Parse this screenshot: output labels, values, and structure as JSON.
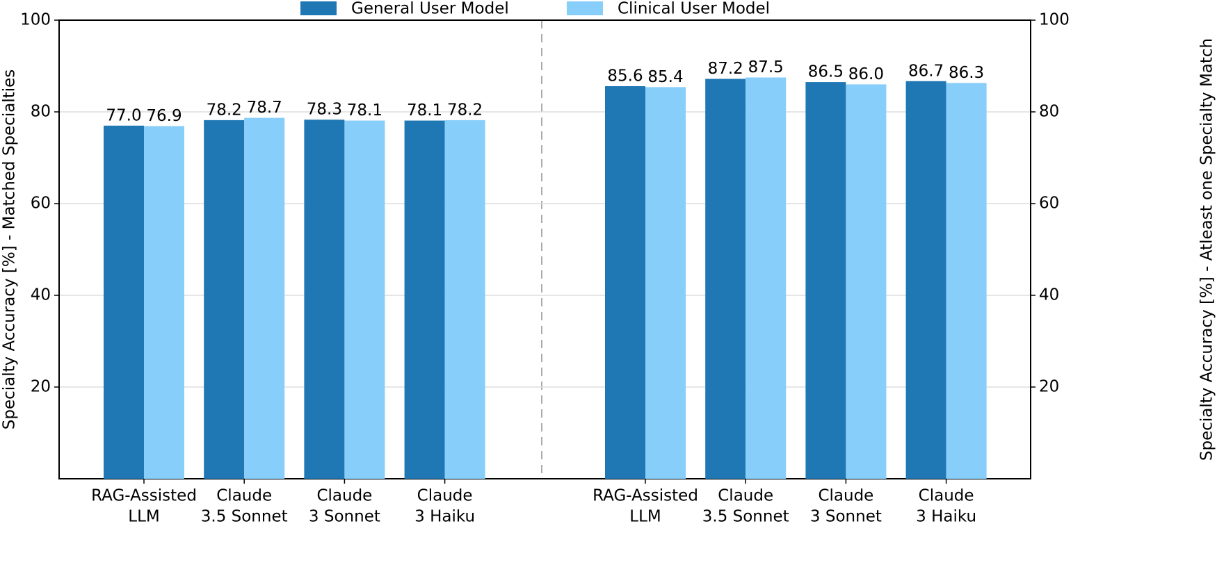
{
  "chart_data": {
    "type": "bar",
    "y_label": "Specialty Accuracy [%] - Matched Specialties",
    "y2_label": "Specialty Accuracy [%] - Atleast one Specialty Match",
    "categories": [
      [
        "RAG-Assisted",
        "LLM"
      ],
      [
        "Claude",
        "3.5 Sonnet"
      ],
      [
        "Claude",
        "3 Sonnet"
      ],
      [
        "Claude",
        "3 Haiku"
      ],
      null,
      [
        "RAG-Assisted",
        "LLM"
      ],
      [
        "Claude",
        "3.5 Sonnet"
      ],
      [
        "Claude",
        "3 Sonnet"
      ],
      [
        "Claude",
        "3 Haiku"
      ]
    ],
    "series": [
      {
        "name": "General User Model",
        "color": "#1f77b4",
        "values": [
          77.0,
          78.2,
          78.3,
          78.1,
          null,
          85.6,
          87.2,
          86.5,
          86.7
        ],
        "value_labels": [
          "77.0",
          "78.2",
          "78.3",
          "78.1",
          null,
          "85.6",
          "87.2",
          "86.5",
          "86.7"
        ]
      },
      {
        "name": "Clinical User Model",
        "color": "#87cefa",
        "values": [
          76.9,
          78.7,
          78.1,
          78.2,
          null,
          85.4,
          87.5,
          86.0,
          86.3
        ],
        "value_labels": [
          "76.9",
          "78.7",
          "78.1",
          "78.2",
          null,
          "85.4",
          "87.5",
          "86.0",
          "86.3"
        ]
      }
    ],
    "ylim": [
      0,
      100
    ],
    "yticks": [
      20,
      40,
      60,
      80,
      100
    ],
    "y2lim": [
      0,
      100
    ],
    "y2ticks": [
      20,
      40,
      60,
      80,
      100
    ],
    "grid": true,
    "legend": "top"
  }
}
